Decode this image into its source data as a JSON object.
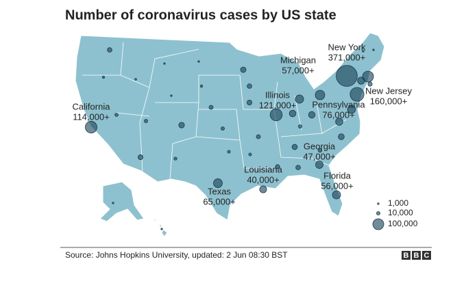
{
  "chart_data": {
    "type": "bubble-map",
    "title": "Number of coronavirus cases by US state",
    "categories": [
      "New York",
      "New Jersey",
      "Michigan",
      "Illinois",
      "Pennsylvania",
      "California",
      "Georgia",
      "Louisiana",
      "Texas",
      "Florida",
      null,
      null,
      null,
      null,
      null,
      null,
      null,
      null,
      null,
      null,
      null,
      null,
      null,
      null,
      null,
      null,
      null,
      null,
      null,
      null,
      null,
      null,
      null,
      null,
      null,
      null,
      null,
      null,
      null,
      null,
      null,
      null,
      null,
      null,
      null,
      null,
      null
    ],
    "values": [
      371000,
      160000,
      57000,
      121000,
      76000,
      114000,
      47000,
      40000,
      65000,
      56000,
      18000,
      4500,
      3000,
      600,
      2500,
      25000,
      18000,
      5000,
      14000,
      20000,
      37000,
      36000,
      9000,
      10000,
      27000,
      10000,
      14000,
      10000,
      44000,
      54000,
      30000,
      24000,
      7000,
      7000,
      20000,
      8000,
      16000,
      18000,
      12000,
      500,
      650,
      900,
      1000,
      2000,
      43000,
      100000,
      15000
    ],
    "value_labels": [
      "371,000+",
      "160,000+",
      "57,000+",
      "121,000+",
      "76,000+",
      "114,000+",
      "47,000+",
      "40,000+",
      "65,000+",
      "56,000+",
      null,
      null,
      null,
      null,
      null,
      null,
      null,
      null,
      null,
      null,
      null,
      null,
      null,
      null,
      null,
      null,
      null,
      null,
      null,
      null,
      null,
      null,
      null,
      null,
      null,
      null,
      null,
      null,
      null,
      null,
      null,
      null,
      null,
      null,
      null,
      null,
      null
    ],
    "size_legend": {
      "values": [
        1000,
        10000,
        100000
      ],
      "labels": [
        "1,000",
        "10,000",
        "100,000"
      ]
    },
    "source": "Source: Johns Hopkins University, updated: 2 Jun 08:30 BST",
    "logo": [
      "B",
      "B",
      "C"
    ]
  }
}
